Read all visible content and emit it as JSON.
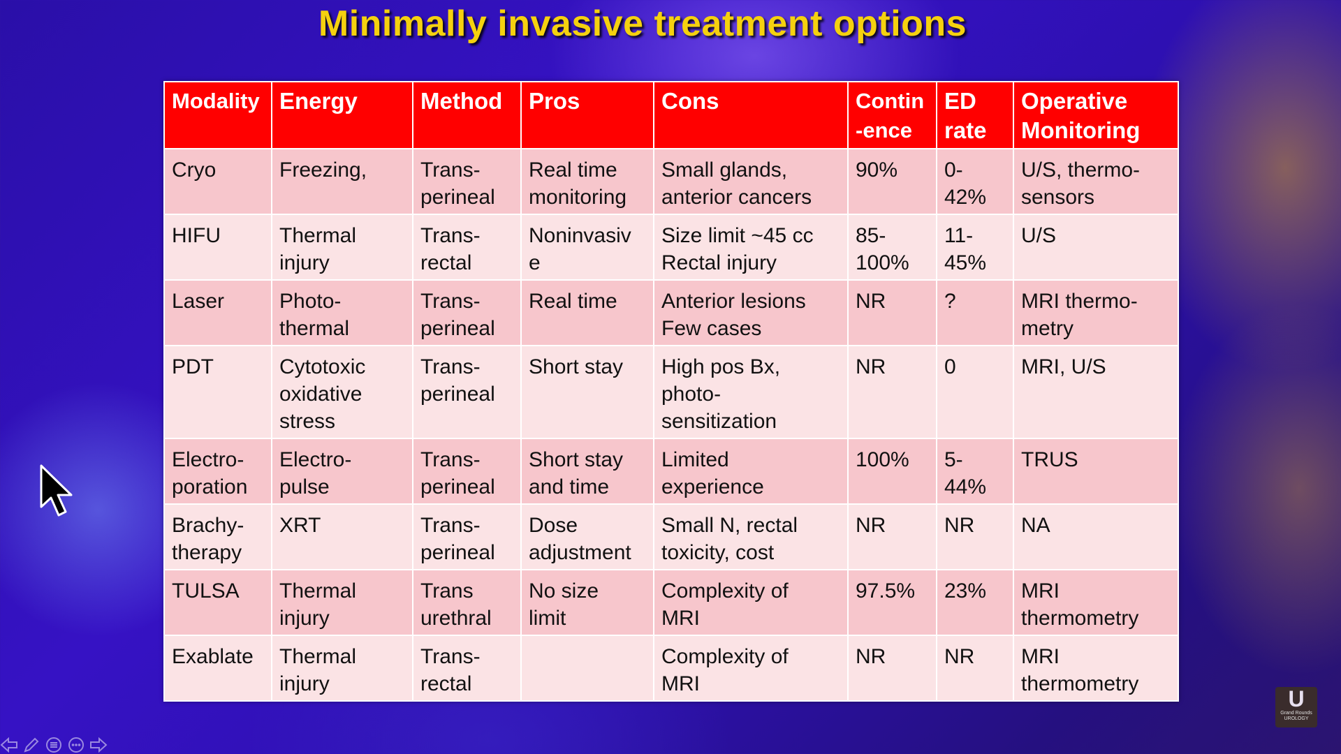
{
  "slide": {
    "title": "Minimally invasive treatment options"
  },
  "table": {
    "headers": [
      "Modality",
      "Energy",
      "Method",
      "Pros",
      "Cons",
      "Contin\n-ence",
      "ED\nrate",
      "Operative\nMonitoring"
    ],
    "rows": [
      [
        "Cryo",
        "Freezing,",
        "Trans-\nperineal",
        "Real time\nmonitoring",
        "Small glands,\nanterior cancers",
        "90%",
        "0-\n42%",
        "U/S, thermo-\nsensors"
      ],
      [
        "HIFU",
        "Thermal\ninjury",
        "Trans-\nrectal",
        "Noninvasiv\ne",
        "Size limit ~45 cc\nRectal injury",
        "85-\n100%",
        "11-\n45%",
        "U/S"
      ],
      [
        "Laser",
        "Photo-\nthermal",
        "Trans-\nperineal",
        "Real time",
        "Anterior lesions\nFew cases",
        "NR",
        "?",
        "MRI thermo-\nmetry"
      ],
      [
        "PDT",
        "Cytotoxic\noxidative\nstress",
        "Trans-\nperineal",
        "Short stay",
        "High pos Bx,\nphoto-\nsensitization",
        "NR",
        "0",
        "MRI, U/S"
      ],
      [
        "Electro-\nporation",
        "Electro-\npulse",
        "Trans-\nperineal",
        "Short stay\nand time",
        "Limited\nexperience",
        "100%",
        "5-\n44%",
        "TRUS"
      ],
      [
        "Brachy-\ntherapy",
        "XRT",
        "Trans-\nperineal",
        "Dose\nadjustment",
        "Small N,  rectal\ntoxicity, cost",
        "NR",
        "NR",
        "NA"
      ],
      [
        "TULSA",
        "Thermal\ninjury",
        "Trans\nurethral",
        "No size\nlimit",
        "Complexity of\nMRI",
        "97.5%",
        "23%",
        "MRI\nthermometry"
      ],
      [
        "Exablate",
        "Thermal\ninjury",
        "Trans-\nrectal",
        "",
        "Complexity of\nMRI",
        "NR",
        "NR",
        "MRI\nthermometry"
      ]
    ]
  },
  "logo": {
    "letter": "U",
    "caption": "Grand Rounds\nUROLOGY"
  },
  "icons": {
    "cursor": "mouse-pointer-icon",
    "nav": [
      "back-arrow-icon",
      "pen-icon",
      "menu-icon",
      "options-icon",
      "forward-arrow-icon"
    ]
  },
  "colors": {
    "title": "#f5d10f",
    "header_bg": "#ff0000",
    "row_odd": "#f7c6cc",
    "row_even": "#fbe3e5"
  }
}
